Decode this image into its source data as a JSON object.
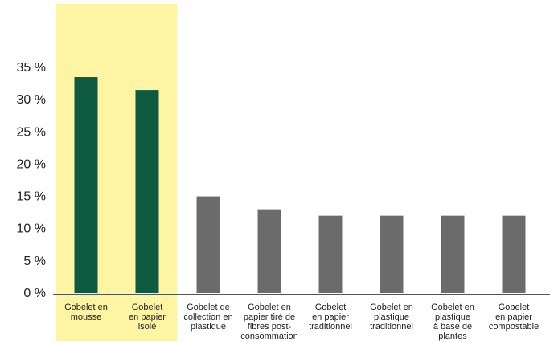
{
  "chart_data": {
    "type": "bar",
    "title": "",
    "xlabel": "",
    "ylabel": "",
    "ylim": [
      0,
      35
    ],
    "yticks": [
      {
        "value": 0,
        "label": "0 %"
      },
      {
        "value": 5,
        "label": "5 %"
      },
      {
        "value": 10,
        "label": "10 %"
      },
      {
        "value": 15,
        "label": "15 %"
      },
      {
        "value": 20,
        "label": "20 %"
      },
      {
        "value": 25,
        "label": "25 %"
      },
      {
        "value": 30,
        "label": "30 %"
      },
      {
        "value": 35,
        "label": "35 %"
      }
    ],
    "grid": false,
    "legend": "none",
    "categories": [
      [
        "Gobelet en",
        "mousse"
      ],
      [
        "Gobelet",
        "en papier",
        "isolé"
      ],
      [
        "Gobelet de",
        "collection en",
        "plastique"
      ],
      [
        "Gobelet en",
        "papier tiré de",
        "fibres post-",
        "consommation"
      ],
      [
        "Gobelet",
        "en papier",
        "traditionnel"
      ],
      [
        "Gobelet en",
        "plastique",
        "traditionnel"
      ],
      [
        "Gobelet en",
        "plastique",
        "à base de",
        "plantes"
      ],
      [
        "Gobelet",
        "en papier",
        "compostable"
      ]
    ],
    "values": [
      33.5,
      31.5,
      15,
      13,
      12,
      12,
      12,
      12
    ],
    "highlighted": [
      true,
      true,
      false,
      false,
      false,
      false,
      false,
      false
    ],
    "colors": {
      "highlight_bar": "#0e5a40",
      "normal_bar": "#6b6b6b",
      "highlight_band": "#fdf5a3",
      "axis": "#555555",
      "text": "#222222"
    }
  }
}
